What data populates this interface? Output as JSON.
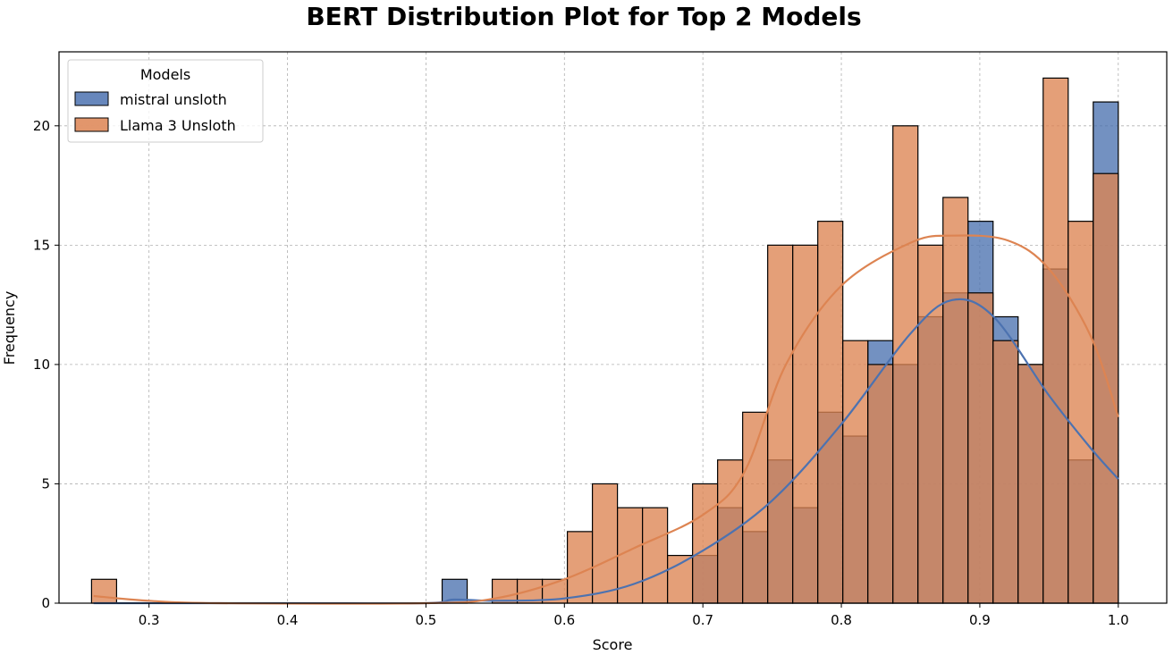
{
  "chart_data": {
    "type": "histogram",
    "title": "BERT Distribution Plot for Top 2 Models",
    "xlabel": "Score",
    "ylabel": "Frequency",
    "xlim": [
      0.235,
      1.035
    ],
    "ylim": [
      0,
      23.1
    ],
    "xticks": [
      0.3,
      0.4,
      0.5,
      0.6,
      0.7,
      0.8,
      0.9,
      1.0
    ],
    "xtick_labels": [
      "0.3",
      "0.4",
      "0.5",
      "0.6",
      "0.7",
      "0.8",
      "0.9",
      "1.0"
    ],
    "yticks": [
      0,
      5,
      10,
      15,
      20
    ],
    "ytick_labels": [
      "0",
      "5",
      "10",
      "15",
      "20"
    ],
    "grid": true,
    "legend": {
      "title": "Models",
      "location": "upper left"
    },
    "bin_range": [
      0.2585,
      1.0
    ],
    "bin_count": 41,
    "series": [
      {
        "name": "mistral unsloth",
        "color": "#4c72b0",
        "counts": [
          0,
          0,
          0,
          0,
          0,
          0,
          0,
          0,
          0,
          0,
          0,
          0,
          0,
          0,
          1,
          0,
          0,
          0,
          0,
          0,
          0,
          0,
          0,
          0,
          2,
          4,
          3,
          6,
          4,
          8,
          7,
          11,
          10,
          12,
          13,
          16,
          12,
          10,
          14,
          6,
          21
        ],
        "kde": [
          [
            0.26,
            0.0
          ],
          [
            0.4,
            0.0
          ],
          [
            0.5,
            0.0
          ],
          [
            0.52,
            0.15
          ],
          [
            0.55,
            0.1
          ],
          [
            0.6,
            0.2
          ],
          [
            0.65,
            0.8
          ],
          [
            0.7,
            2.2
          ],
          [
            0.75,
            4.3
          ],
          [
            0.8,
            7.5
          ],
          [
            0.85,
            11.3
          ],
          [
            0.88,
            12.7
          ],
          [
            0.91,
            12.0
          ],
          [
            0.95,
            8.7
          ],
          [
            0.98,
            6.5
          ],
          [
            1.0,
            5.2
          ]
        ]
      },
      {
        "name": "Llama 3 Unsloth",
        "color": "#dd8452",
        "counts": [
          1,
          0,
          0,
          0,
          0,
          0,
          0,
          0,
          0,
          0,
          0,
          0,
          0,
          0,
          0,
          0,
          1,
          1,
          1,
          3,
          5,
          4,
          4,
          2,
          5,
          6,
          8,
          15,
          15,
          16,
          11,
          10,
          20,
          15,
          17,
          13,
          11,
          10,
          22,
          16,
          18
        ],
        "kde": [
          [
            0.26,
            0.3
          ],
          [
            0.3,
            0.1
          ],
          [
            0.35,
            0.0
          ],
          [
            0.5,
            0.0
          ],
          [
            0.55,
            0.2
          ],
          [
            0.6,
            1.0
          ],
          [
            0.65,
            2.3
          ],
          [
            0.7,
            3.7
          ],
          [
            0.73,
            5.5
          ],
          [
            0.76,
            10.0
          ],
          [
            0.8,
            13.3
          ],
          [
            0.85,
            15.1
          ],
          [
            0.88,
            15.4
          ],
          [
            0.92,
            15.2
          ],
          [
            0.95,
            14.0
          ],
          [
            0.98,
            11.2
          ],
          [
            1.0,
            7.8
          ]
        ]
      }
    ]
  }
}
